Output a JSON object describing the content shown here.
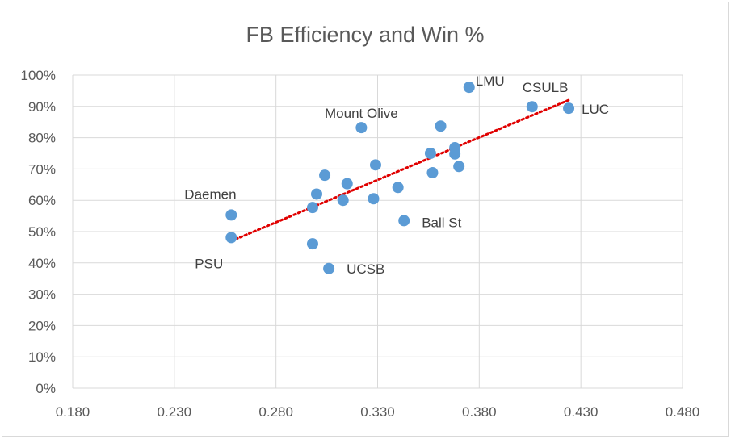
{
  "chart_data": {
    "type": "scatter",
    "title": "FB Efficiency and Win %",
    "xlabel": "",
    "ylabel": "",
    "xlim": [
      0.18,
      0.48
    ],
    "ylim": [
      0,
      1.0
    ],
    "x_ticks": [
      "0.180",
      "0.230",
      "0.280",
      "0.330",
      "0.380",
      "0.430",
      "0.480"
    ],
    "y_ticks": [
      "0%",
      "10%",
      "20%",
      "30%",
      "40%",
      "50%",
      "60%",
      "70%",
      "80%",
      "90%",
      "100%"
    ],
    "x_tick_values": [
      0.18,
      0.23,
      0.28,
      0.33,
      0.38,
      0.43,
      0.48
    ],
    "y_tick_values": [
      0,
      0.1,
      0.2,
      0.3,
      0.4,
      0.5,
      0.6,
      0.7,
      0.8,
      0.9,
      1.0
    ],
    "grid": true,
    "marker_color": "#5b9bd5",
    "trendline_color": "#e00000",
    "trendline": {
      "type": "linear",
      "style": "dotted",
      "x": [
        0.258,
        0.424
      ],
      "y": [
        0.47,
        0.92
      ]
    },
    "points": [
      {
        "x": 0.258,
        "y": 0.553,
        "label": "Daemen"
      },
      {
        "x": 0.258,
        "y": 0.481,
        "label": "PSU"
      },
      {
        "x": 0.298,
        "y": 0.461
      },
      {
        "x": 0.306,
        "y": 0.382,
        "label": "UCSB"
      },
      {
        "x": 0.298,
        "y": 0.577
      },
      {
        "x": 0.3,
        "y": 0.62
      },
      {
        "x": 0.304,
        "y": 0.68
      },
      {
        "x": 0.313,
        "y": 0.6
      },
      {
        "x": 0.315,
        "y": 0.653
      },
      {
        "x": 0.322,
        "y": 0.832,
        "label": "Mount Olive"
      },
      {
        "x": 0.328,
        "y": 0.605
      },
      {
        "x": 0.329,
        "y": 0.713
      },
      {
        "x": 0.34,
        "y": 0.641
      },
      {
        "x": 0.343,
        "y": 0.535,
        "label": "Ball St"
      },
      {
        "x": 0.356,
        "y": 0.75
      },
      {
        "x": 0.357,
        "y": 0.688
      },
      {
        "x": 0.361,
        "y": 0.837
      },
      {
        "x": 0.368,
        "y": 0.768
      },
      {
        "x": 0.368,
        "y": 0.748
      },
      {
        "x": 0.37,
        "y": 0.708
      },
      {
        "x": 0.375,
        "y": 0.961,
        "label": "LMU"
      },
      {
        "x": 0.406,
        "y": 0.899,
        "label": "CSULB"
      },
      {
        "x": 0.424,
        "y": 0.894,
        "label": "LUC"
      }
    ]
  }
}
